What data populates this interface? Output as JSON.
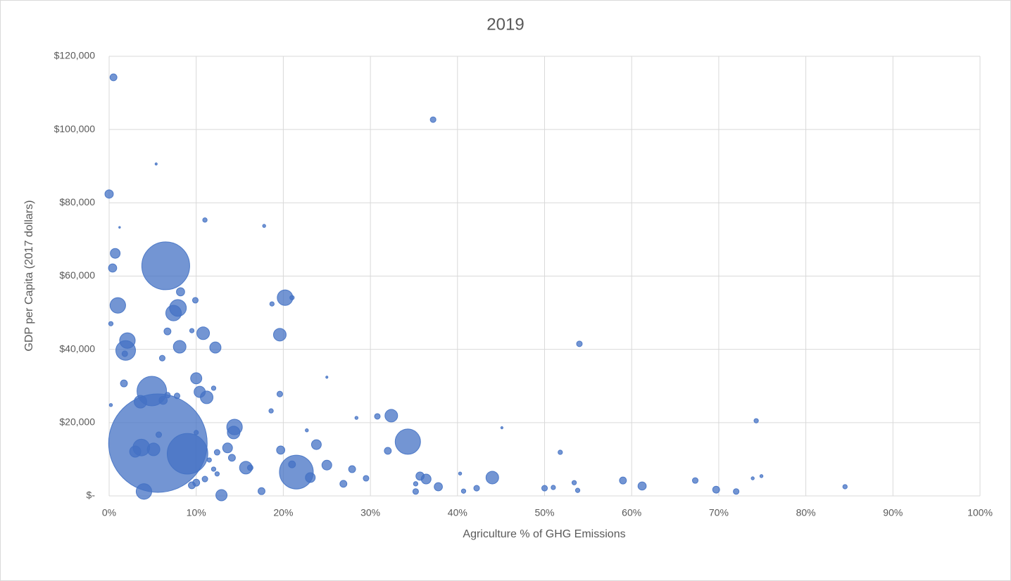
{
  "chart_data": {
    "type": "bubble",
    "title": "2019",
    "x_label": "Agriculture % of GHG Emissions",
    "y_label": "GDP per Capita (2017 dollars)",
    "color": "#4472c4",
    "grid": true,
    "xlim": [
      0,
      100
    ],
    "xticks": [
      {
        "value": 0,
        "label": "0%"
      },
      {
        "value": 10,
        "label": "10%"
      },
      {
        "value": 20,
        "label": "20%"
      },
      {
        "value": 30,
        "label": "30%"
      },
      {
        "value": 40,
        "label": "40%"
      },
      {
        "value": 50,
        "label": "50%"
      },
      {
        "value": 60,
        "label": "60%"
      },
      {
        "value": 70,
        "label": "70%"
      },
      {
        "value": 80,
        "label": "80%"
      },
      {
        "value": 90,
        "label": "90%"
      },
      {
        "value": 100,
        "label": "100%"
      }
    ],
    "ylim": [
      0,
      120000
    ],
    "yticks": [
      {
        "value": 0,
        "label": "$-"
      },
      {
        "value": 20000,
        "label": "$20,000"
      },
      {
        "value": 40000,
        "label": "$40,000"
      },
      {
        "value": 60000,
        "label": "$60,000"
      },
      {
        "value": 80000,
        "label": "$80,000"
      },
      {
        "value": 100000,
        "label": "$100,000"
      },
      {
        "value": 120000,
        "label": "$120,000"
      }
    ],
    "x": [
      0.5,
      37.2,
      5.4,
      0,
      11.0,
      17.8,
      1.2,
      0.7,
      0.4,
      6.5,
      8.2,
      20.2,
      9.9,
      18.7,
      1.0,
      7.9,
      7.4,
      0.2,
      6.7,
      9.5,
      10.8,
      19.6,
      54.0,
      2.1,
      8.1,
      12.2,
      1.9,
      1.8,
      6.1,
      10.0,
      25.0,
      1.7,
      4.9,
      10.4,
      19.6,
      7.8,
      6.7,
      11.2,
      6.2,
      3.6,
      12.0,
      18.6,
      32.4,
      30.8,
      74.3,
      14.4,
      14.3,
      22.7,
      34.3,
      5.6,
      3.7,
      5.1,
      9.0,
      23.8,
      19.7,
      32.0,
      51.8,
      13.6,
      3.0,
      21.5,
      15.7,
      25.0,
      21.0,
      12.0,
      27.9,
      44.0,
      23.1,
      35.7,
      36.4,
      29.5,
      59.0,
      67.3,
      53.4,
      10.0,
      26.9,
      61.2,
      9.5,
      37.8,
      84.5,
      42.2,
      50.0,
      51.0,
      69.7,
      53.8,
      72.0,
      17.5,
      35.2,
      40.7,
      4.0,
      12.9,
      35.2,
      0.2,
      5.7,
      10.0,
      11.5,
      12.4,
      16.2,
      74.9,
      73.9,
      45.1,
      40.3,
      28.4,
      21.0,
      11.0,
      14.1,
      12.4
    ],
    "values": [
      114250,
      102700,
      90600,
      82400,
      75300,
      73700,
      73300,
      66200,
      62200,
      62800,
      55700,
      54100,
      53400,
      52400,
      52000,
      51300,
      49900,
      47000,
      44900,
      45100,
      44400,
      44000,
      41500,
      42400,
      40700,
      40500,
      39700,
      38800,
      37600,
      32100,
      32400,
      30700,
      28600,
      28400,
      27800,
      27300,
      27500,
      26900,
      26100,
      25700,
      29400,
      23200,
      21900,
      21700,
      20500,
      18800,
      17300,
      17900,
      14800,
      14400,
      13200,
      12700,
      11500,
      14000,
      12500,
      12300,
      11900,
      13100,
      12100,
      6500,
      7700,
      8400,
      8600,
      7300,
      7300,
      5000,
      5000,
      5400,
      4600,
      4800,
      4200,
      4200,
      3600,
      3600,
      3300,
      2700,
      2900,
      2500,
      2500,
      2100,
      2100,
      2300,
      1700,
      1500,
      1200,
      1300,
      1200,
      1300,
      1200,
      200,
      3300,
      24800,
      16700,
      17300,
      9800,
      6000,
      7700,
      5400,
      4800,
      18600,
      6100,
      21300,
      54100,
      4600,
      10400,
      11900
    ],
    "sizes": [
      0.5,
      0.33,
      0.05,
      0.73,
      0.2,
      0.1,
      0.03,
      1,
      0.7,
      23.6,
      0.7,
      2.5,
      0.33,
      0.2,
      2.5,
      2.9,
      2.5,
      0.2,
      0.5,
      0.2,
      1.65,
      1.65,
      0.33,
      2.5,
      1.65,
      1.3,
      4,
      0.33,
      0.33,
      1.3,
      0.05,
      0.5,
      9,
      1.3,
      0.33,
      0.33,
      0.33,
      1.65,
      0.7,
      1.65,
      0.2,
      0.2,
      1.65,
      0.33,
      0.2,
      2.5,
      1.65,
      0.1,
      6.6,
      100,
      2.9,
      1.65,
      17,
      1,
      0.7,
      0.5,
      0.2,
      1,
      1.3,
      11.8,
      1.65,
      1,
      0.5,
      0.2,
      0.5,
      1.65,
      1,
      0.7,
      1,
      0.33,
      0.5,
      0.33,
      0.2,
      0.5,
      0.5,
      0.7,
      0.5,
      0.7,
      0.2,
      0.33,
      0.33,
      0.2,
      0.5,
      0.2,
      0.33,
      0.5,
      0.33,
      0.2,
      2.5,
      1.3,
      0.2,
      0.1,
      0.33,
      0.2,
      0.2,
      0.2,
      0.33,
      0.1,
      0.1,
      0.05,
      0.1,
      0.1,
      0.2,
      0.33,
      0.5,
      0.33
    ]
  }
}
